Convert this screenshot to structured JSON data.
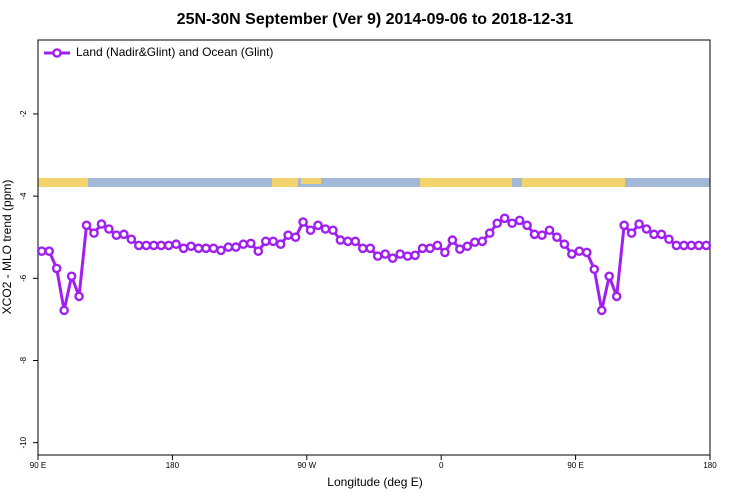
{
  "chart_data": {
    "type": "line",
    "title": "25N-30N September (Ver 9)   2014-09-06 to 2018-12-31",
    "x_label": "Longitude (deg E)",
    "y_label": "XCO2 - MLO trend (ppm)",
    "legend": "upper left",
    "xlim": [
      90,
      540
    ],
    "xticks": [
      {
        "value": 90,
        "label": "90 E"
      },
      180,
      {
        "value": 270,
        "label": "90 W"
      },
      {
        "value": 360,
        "label": "0"
      },
      {
        "value": 450,
        "label": "90 E"
      },
      {
        "value": 540,
        "label": "180"
      }
    ],
    "ylim": [
      -10.3,
      -0.2
    ],
    "yticks": [
      -2,
      -4,
      -6,
      -8,
      -10
    ],
    "x": [
      92.5,
      97.5,
      102.5,
      107.5,
      112.5,
      117.5,
      122.5,
      127.5,
      132.5,
      137.5,
      142.5,
      147.5,
      152.5,
      157.5,
      162.5,
      167.5,
      172.5,
      177.5,
      182.5,
      187.5,
      192.5,
      197.5,
      202.5,
      207.5,
      212.5,
      217.5,
      222.5,
      227.5,
      232.5,
      237.5,
      242.5,
      247.5,
      252.5,
      257.5,
      262.5,
      267.5,
      272.5,
      277.5,
      282.5,
      287.5,
      292.5,
      297.5,
      302.5,
      307.5,
      312.5,
      317.5,
      322.5,
      327.5,
      332.5,
      337.5,
      342.5,
      347.5,
      352.5,
      357.5,
      362.5,
      367.5,
      372.5,
      377.5,
      382.5,
      387.5,
      392.5,
      397.5,
      402.5,
      407.5,
      412.5,
      417.5,
      422.5,
      427.5,
      432.5,
      437.5,
      442.5,
      447.5,
      452.5,
      457.5,
      462.5,
      467.5,
      472.5,
      477.5,
      482.5,
      487.5,
      492.5,
      497.5,
      502.5,
      507.5,
      512.5,
      517.5,
      522.5,
      527.5,
      532.5,
      537.5
    ],
    "series": [
      {
        "name": "Land (Nadir&Glint) and Ocean (Glint)",
        "color": "#a020f0",
        "values": [
          -5.34,
          -5.34,
          -5.76,
          -6.78,
          -5.95,
          -6.44,
          -4.71,
          -4.9,
          -4.68,
          -4.8,
          -4.95,
          -4.93,
          -5.05,
          -5.2,
          -5.2,
          -5.2,
          -5.2,
          -5.2,
          -5.17,
          -5.27,
          -5.22,
          -5.27,
          -5.27,
          -5.27,
          -5.32,
          -5.24,
          -5.24,
          -5.17,
          -5.15,
          -5.34,
          -5.1,
          -5.1,
          -5.17,
          -4.95,
          -5.0,
          -4.63,
          -4.83,
          -4.71,
          -4.8,
          -4.83,
          -5.07,
          -5.1,
          -5.1,
          -5.27,
          -5.27,
          -5.46,
          -5.41,
          -5.51,
          -5.41,
          -5.46,
          -5.44,
          -5.27,
          -5.27,
          -5.2,
          -5.37,
          -5.07,
          -5.29,
          -5.22,
          -5.12,
          -5.1,
          -4.9,
          -4.66,
          -4.54,
          -4.66,
          -4.59,
          -4.71,
          -4.93,
          -4.95,
          -4.83,
          -5.0,
          -5.17,
          -5.41,
          -5.34,
          -5.37,
          -5.78,
          -6.78,
          -5.95,
          -6.44,
          -4.71,
          -4.9,
          -4.68,
          -4.8,
          -4.93,
          -4.93,
          -5.05,
          -5.2,
          -5.2,
          -5.2,
          -5.2,
          -5.2
        ]
      }
    ]
  }
}
